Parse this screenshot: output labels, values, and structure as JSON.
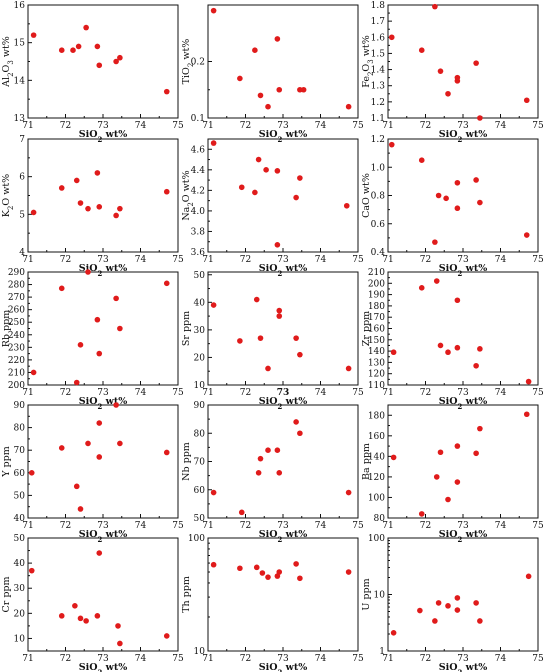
{
  "chart_data": [
    {
      "type": "scatter",
      "xlabel": "SiO₂ wt%",
      "ylabel": "Al₂O₃ wt%",
      "xlim": [
        71,
        75
      ],
      "ylim": [
        13,
        16
      ],
      "xticks": [
        71,
        72,
        73,
        74,
        75
      ],
      "yticks": [
        13,
        14,
        15,
        16
      ],
      "tick_labels_x": [
        "71",
        "72",
        "73",
        "74",
        "75"
      ],
      "tick_labels_y": [
        "13",
        "14",
        "15",
        "16"
      ],
      "x": [
        71.15,
        71.9,
        72.2,
        72.35,
        72.55,
        72.85,
        72.9,
        73.35,
        73.45,
        74.7
      ],
      "y": [
        15.2,
        14.8,
        14.8,
        14.9,
        15.4,
        14.9,
        14.4,
        14.5,
        14.6,
        13.7
      ]
    },
    {
      "type": "scatter",
      "xlabel": "SiO₂ wt%",
      "ylabel": "TiO₂ wt%",
      "xlim": [
        71,
        75
      ],
      "ylim": [
        0.1,
        0.3
      ],
      "xticks": [
        71,
        72,
        73,
        74,
        75
      ],
      "yticks": [
        0.1,
        0.2
      ],
      "tick_labels_x": [
        "71",
        "72",
        "73",
        "74",
        "75"
      ],
      "tick_labels_y": [
        "0.1",
        "0.2"
      ],
      "x": [
        71.15,
        71.85,
        72.25,
        72.4,
        72.6,
        72.85,
        72.9,
        73.45,
        73.55,
        74.75
      ],
      "y": [
        0.29,
        0.17,
        0.22,
        0.14,
        0.12,
        0.24,
        0.15,
        0.15,
        0.15,
        0.12
      ]
    },
    {
      "type": "scatter",
      "xlabel": "SiO₂ wt%",
      "ylabel": "Fe₂O₃ wt%",
      "xlim": [
        71,
        75
      ],
      "ylim": [
        1.1,
        1.8
      ],
      "xticks": [
        71,
        72,
        73,
        74,
        75
      ],
      "yticks": [
        1.1,
        1.2,
        1.3,
        1.4,
        1.5,
        1.6,
        1.7,
        1.8
      ],
      "tick_labels_x": [
        "71",
        "72",
        "73",
        "74",
        "75"
      ],
      "tick_labels_y": [
        "1.1",
        "1.2",
        "1.3",
        "1.4",
        "1.5",
        "1.6",
        "1.7",
        "1.8"
      ],
      "x": [
        71.1,
        71.9,
        72.25,
        72.4,
        72.6,
        72.85,
        72.85,
        73.35,
        73.45,
        74.7
      ],
      "y": [
        1.6,
        1.52,
        1.79,
        1.39,
        1.25,
        1.33,
        1.35,
        1.44,
        1.1,
        1.21
      ]
    },
    {
      "type": "scatter",
      "xlabel": "SiO₂ wt%",
      "ylabel": "K₂O wt%",
      "xlim": [
        71,
        75
      ],
      "ylim": [
        4,
        7
      ],
      "xticks": [
        71,
        72,
        73,
        74,
        75
      ],
      "yticks": [
        4,
        5,
        6,
        7
      ],
      "tick_labels_x": [
        "71",
        "72",
        "73",
        "74",
        "75"
      ],
      "tick_labels_y": [
        "4",
        "5",
        "6",
        "7"
      ],
      "x": [
        71.15,
        71.9,
        72.3,
        72.4,
        72.6,
        72.85,
        72.9,
        73.35,
        73.45,
        74.7
      ],
      "y": [
        5.05,
        5.7,
        5.9,
        5.3,
        5.15,
        6.1,
        5.2,
        4.97,
        5.15,
        5.6
      ]
    },
    {
      "type": "scatter",
      "xlabel": "SiO₂ wt%",
      "ylabel": "Na₂O wt%",
      "xlim": [
        71,
        75
      ],
      "ylim": [
        3.6,
        4.7
      ],
      "xticks": [
        71,
        72,
        73,
        74,
        75
      ],
      "yticks": [
        3.6,
        3.8,
        4.0,
        4.2,
        4.4,
        4.6
      ],
      "tick_labels_x": [
        "71",
        "72",
        "73",
        "74",
        "75"
      ],
      "tick_labels_y": [
        "3.6",
        "3.8",
        "4.0",
        "4.2",
        "4.4",
        "4.6"
      ],
      "x": [
        71.15,
        71.9,
        72.25,
        72.35,
        72.55,
        72.85,
        72.85,
        73.35,
        73.45,
        74.7
      ],
      "y": [
        4.66,
        4.23,
        4.18,
        4.5,
        4.4,
        4.39,
        3.67,
        4.13,
        4.32,
        4.05
      ]
    },
    {
      "type": "scatter",
      "xlabel": "SiO₂ wt%",
      "ylabel": "CaO wt%",
      "xlim": [
        71,
        75
      ],
      "ylim": [
        0.4,
        1.2
      ],
      "xticks": [
        71,
        72,
        73,
        74,
        75
      ],
      "yticks": [
        0.4,
        0.6,
        0.8,
        1.0,
        1.2
      ],
      "tick_labels_x": [
        "71",
        "72",
        "73",
        "74",
        "75"
      ],
      "tick_labels_y": [
        "0.4",
        "0.6",
        "0.8",
        "1.0",
        "1.2"
      ],
      "x": [
        71.1,
        71.9,
        72.25,
        72.35,
        72.55,
        72.85,
        72.85,
        73.35,
        73.45,
        74.7
      ],
      "y": [
        1.16,
        1.05,
        0.47,
        0.8,
        0.78,
        0.71,
        0.89,
        0.91,
        0.75,
        0.52
      ]
    },
    {
      "type": "scatter",
      "xlabel": "SiO₂ wt%",
      "ylabel": "Rb ppm",
      "xlim": [
        71,
        75
      ],
      "ylim": [
        200,
        290
      ],
      "xticks": [
        71,
        72,
        73,
        74,
        75
      ],
      "yticks": [
        200,
        210,
        220,
        230,
        240,
        250,
        260,
        270,
        280,
        290
      ],
      "tick_labels_x": [
        "71",
        "72",
        "73",
        "74",
        "75"
      ],
      "tick_labels_y": [
        "200",
        "210",
        "220",
        "230",
        "240",
        "250",
        "260",
        "270",
        "280",
        "290"
      ],
      "x": [
        71.15,
        71.9,
        72.3,
        72.4,
        72.6,
        72.85,
        72.9,
        73.35,
        73.45,
        74.7
      ],
      "y": [
        210,
        277,
        202,
        232,
        290,
        252,
        225,
        269,
        245,
        281
      ]
    },
    {
      "type": "scatter",
      "xlabel": "SiO₂ wt%",
      "ylabel": "Sr ppm",
      "xlim": [
        71,
        75
      ],
      "ylim": [
        10,
        51
      ],
      "xticks": [
        71,
        72,
        73,
        74,
        75
      ],
      "yticks": [
        10,
        20,
        30,
        40,
        50
      ],
      "tick_labels_x": [
        "71",
        "72",
        "73",
        "74",
        "75"
      ],
      "tick_labels_y": [
        "10",
        "20",
        "30",
        "40",
        "50"
      ],
      "x": [
        71.15,
        71.85,
        72.3,
        72.4,
        72.6,
        72.9,
        72.9,
        73.35,
        73.45,
        74.75
      ],
      "y": [
        39,
        26,
        41,
        27,
        16,
        35,
        37,
        27,
        21,
        16
      ]
    },
    {
      "type": "scatter",
      "xlabel": "SiO₂ wt%",
      "ylabel": "Zr ppm",
      "xlim": [
        71,
        75
      ],
      "ylim": [
        110,
        210
      ],
      "xticks": [
        71,
        72,
        73,
        74,
        75
      ],
      "yticks": [
        110,
        120,
        130,
        140,
        150,
        160,
        170,
        180,
        190,
        200,
        210
      ],
      "tick_labels_x": [
        "71",
        "72",
        "73",
        "74",
        "75"
      ],
      "tick_labels_y": [
        "110",
        "120",
        "130",
        "140",
        "150",
        "160",
        "170",
        "180",
        "190",
        "200",
        "210"
      ],
      "x": [
        71.15,
        71.9,
        72.3,
        72.4,
        72.6,
        72.85,
        72.85,
        73.35,
        73.45,
        74.75
      ],
      "y": [
        139,
        196,
        202,
        145,
        139,
        185,
        143,
        127,
        142,
        113
      ]
    },
    {
      "type": "scatter",
      "xlabel": "SiO₂ wt%",
      "ylabel": "Y ppm",
      "xlim": [
        71,
        75
      ],
      "ylim": [
        40,
        90
      ],
      "xticks": [
        71,
        72,
        73,
        74,
        75
      ],
      "yticks": [
        40,
        50,
        60,
        70,
        80,
        90
      ],
      "tick_labels_x": [
        "71",
        "72",
        "73",
        "74",
        "75"
      ],
      "tick_labels_y": [
        "40",
        "50",
        "60",
        "70",
        "80",
        "90"
      ],
      "x": [
        71.1,
        71.9,
        72.3,
        72.4,
        72.6,
        72.9,
        72.9,
        73.35,
        73.45,
        74.7
      ],
      "y": [
        60,
        71,
        54,
        44,
        73,
        82,
        67,
        90,
        73,
        69
      ]
    },
    {
      "type": "scatter",
      "xlabel": "SiO₂ wt%",
      "ylabel": "Nb ppm",
      "xlim": [
        71,
        75
      ],
      "ylim": [
        50,
        90
      ],
      "xticks": [
        71,
        72,
        73,
        74,
        75
      ],
      "yticks": [
        50,
        60,
        70,
        80,
        90
      ],
      "tick_labels_x": [
        "71",
        "72",
        "73",
        "74",
        "75"
      ],
      "tick_labels_y": [
        "50",
        "60",
        "70",
        "80",
        "90"
      ],
      "x": [
        71.15,
        71.9,
        72.35,
        72.4,
        72.6,
        72.85,
        72.9,
        73.35,
        73.45,
        74.75
      ],
      "y": [
        59,
        52,
        66,
        71,
        74,
        74,
        66,
        84,
        80,
        59
      ]
    },
    {
      "type": "scatter",
      "xlabel": "SiO₂ wt%",
      "ylabel": "Ba ppm",
      "xlim": [
        71,
        75
      ],
      "ylim": [
        80,
        190
      ],
      "xticks": [
        71,
        72,
        73,
        74,
        75
      ],
      "yticks": [
        80,
        100,
        120,
        140,
        160,
        180
      ],
      "tick_labels_x": [
        "71",
        "72",
        "73",
        "74",
        "75"
      ],
      "tick_labels_y": [
        "80",
        "100",
        "120",
        "140",
        "160",
        "180"
      ],
      "x": [
        71.15,
        71.9,
        72.3,
        72.4,
        72.6,
        72.85,
        72.85,
        73.35,
        73.45,
        74.7
      ],
      "y": [
        139,
        84,
        120,
        144,
        98,
        115,
        150,
        143,
        167,
        181
      ]
    },
    {
      "type": "scatter",
      "xlabel": "SiO₂ wt%",
      "ylabel": "Cr ppm",
      "xlim": [
        71,
        75
      ],
      "ylim": [
        5,
        50
      ],
      "xticks": [
        71,
        72,
        73,
        74,
        75
      ],
      "yticks": [
        10,
        20,
        30,
        40,
        50
      ],
      "tick_labels_x": [
        "71",
        "72",
        "73",
        "74",
        "75"
      ],
      "tick_labels_y": [
        "10",
        "20",
        "30",
        "40",
        "50"
      ],
      "x": [
        71.1,
        71.9,
        72.25,
        72.4,
        72.55,
        72.85,
        72.9,
        73.4,
        73.45,
        74.7
      ],
      "y": [
        37,
        19,
        23,
        18,
        17,
        19,
        44,
        15,
        8,
        11
      ]
    },
    {
      "type": "scatter",
      "xlabel": "SiO₂ wt%",
      "ylabel": "Th ppm",
      "xlim": [
        71,
        75
      ],
      "ylim": [
        10,
        100
      ],
      "yscale": "log",
      "xticks": [
        71,
        72,
        73,
        74,
        75
      ],
      "yticks": [
        10,
        100
      ],
      "tick_labels_x": [
        "71",
        "72",
        "73",
        "74",
        "75"
      ],
      "tick_labels_y": [
        "10",
        "100"
      ],
      "x": [
        71.15,
        71.85,
        72.3,
        72.45,
        72.6,
        72.85,
        72.9,
        73.35,
        73.45,
        74.75
      ],
      "y": [
        58,
        54,
        55,
        49,
        45,
        46,
        50,
        59,
        44,
        50
      ]
    },
    {
      "type": "scatter",
      "xlabel": "SiO₂ wt%",
      "ylabel": "U ppm",
      "xlim": [
        71,
        75
      ],
      "ylim": [
        1,
        100
      ],
      "yscale": "log",
      "xticks": [
        71,
        72,
        73,
        74,
        75
      ],
      "yticks": [
        1,
        10,
        100
      ],
      "tick_labels_x": [
        "71",
        "72",
        "73",
        "74",
        "75"
      ],
      "tick_labels_y": [
        "1",
        "10",
        "100"
      ],
      "x": [
        71.15,
        71.85,
        72.25,
        72.35,
        72.6,
        72.85,
        72.85,
        73.35,
        73.45,
        74.75
      ],
      "y": [
        2.1,
        5.2,
        3.4,
        7.1,
        6.3,
        5.3,
        8.7,
        7.1,
        3.4,
        21
      ]
    }
  ],
  "style": {
    "marker_color": "#e01b1b",
    "axis_color": "#111111",
    "bold_tick_panel": 7
  }
}
